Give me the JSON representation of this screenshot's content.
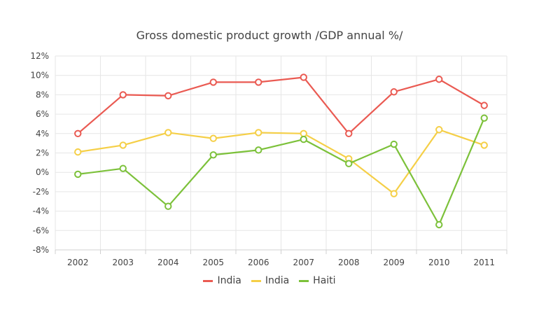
{
  "chart_data": {
    "type": "line",
    "title": "Gross domestic product growth /GDP annual %/",
    "categories": [
      "2002",
      "2003",
      "2004",
      "2005",
      "2006",
      "2007",
      "2008",
      "2009",
      "2010",
      "2011"
    ],
    "ylim": [
      -8,
      12
    ],
    "yticks": [
      12,
      10,
      8,
      6,
      4,
      2,
      0,
      -2,
      -4,
      -6,
      -8
    ],
    "ytick_labels": [
      "12%",
      "10%",
      "8%",
      "6%",
      "4%",
      "2%",
      "0%",
      "-2%",
      "-4%",
      "-6%",
      "-8%"
    ],
    "grid": true,
    "legend_position": "bottom",
    "series": [
      {
        "name": "India",
        "color": "#ea5a52",
        "values": [
          4.0,
          8.0,
          7.9,
          9.3,
          9.3,
          9.8,
          4.0,
          8.3,
          9.6,
          6.9
        ]
      },
      {
        "name": "India",
        "color": "#f5cf47",
        "values": [
          2.1,
          2.8,
          4.1,
          3.5,
          4.1,
          4.0,
          1.4,
          -2.2,
          4.4,
          2.8
        ]
      },
      {
        "name": "Haiti",
        "color": "#7cc13a",
        "values": [
          -0.2,
          0.4,
          -3.5,
          1.8,
          2.3,
          3.4,
          0.9,
          2.9,
          -5.4,
          5.6
        ]
      }
    ]
  }
}
